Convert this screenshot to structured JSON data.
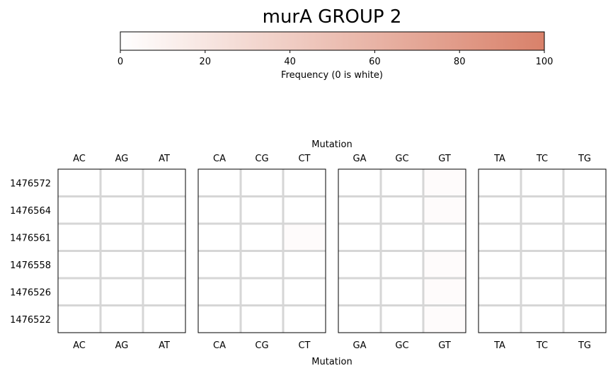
{
  "chart_data": {
    "type": "heatmap",
    "title": "murA GROUP 2",
    "xlabel": "Mutation",
    "colorbar": {
      "label": "Frequency (0 is white)",
      "range": [
        0,
        100
      ],
      "ticks": [
        "0",
        "20",
        "40",
        "60",
        "80",
        "100"
      ],
      "color_low": "#ffffff",
      "color_high": "#d9816a"
    },
    "positions": [
      "1476572",
      "1476564",
      "1476561",
      "1476558",
      "1476526",
      "1476522"
    ],
    "panels": [
      {
        "group": "A",
        "mutations": [
          "AC",
          "AG",
          "AT"
        ],
        "values": [
          [
            0,
            0,
            0
          ],
          [
            0,
            0,
            0
          ],
          [
            0,
            0,
            0
          ],
          [
            0,
            0,
            0
          ],
          [
            0,
            0,
            0
          ],
          [
            0,
            0,
            0
          ]
        ]
      },
      {
        "group": "C",
        "mutations": [
          "CA",
          "CG",
          "CT"
        ],
        "values": [
          [
            0,
            0,
            0
          ],
          [
            0,
            0,
            0
          ],
          [
            0,
            0,
            3
          ],
          [
            0,
            0,
            0
          ],
          [
            0,
            0,
            0
          ],
          [
            0,
            0,
            0
          ]
        ]
      },
      {
        "group": "G",
        "mutations": [
          "GA",
          "GC",
          "GT"
        ],
        "values": [
          [
            0,
            0,
            3
          ],
          [
            0,
            0,
            3
          ],
          [
            0,
            0,
            0
          ],
          [
            0,
            0,
            3
          ],
          [
            0,
            0,
            3
          ],
          [
            0,
            0,
            3
          ]
        ]
      },
      {
        "group": "T",
        "mutations": [
          "TA",
          "TC",
          "TG"
        ],
        "values": [
          [
            0,
            0,
            0
          ],
          [
            0,
            0,
            0
          ],
          [
            0,
            0,
            0
          ],
          [
            0,
            0,
            0
          ],
          [
            0,
            0,
            0
          ],
          [
            0,
            0,
            0
          ]
        ]
      }
    ]
  }
}
